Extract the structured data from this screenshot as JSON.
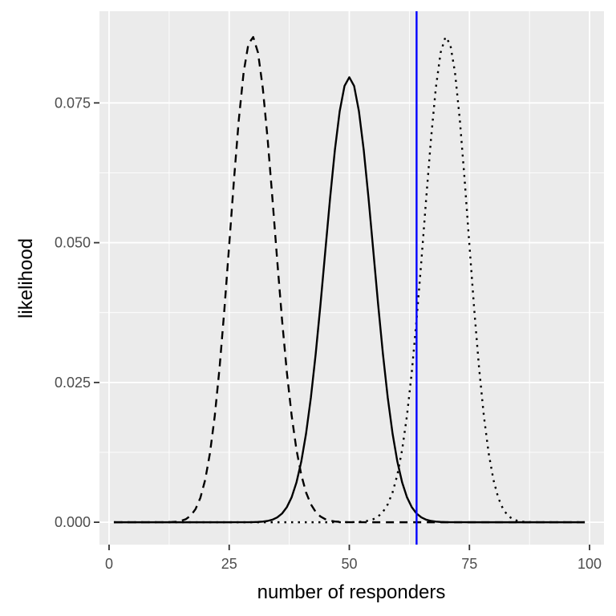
{
  "chart_data": {
    "type": "line",
    "title": "",
    "xlabel": "number of responders",
    "ylabel": "likelihood",
    "xlim": [
      -2,
      103
    ],
    "ylim": [
      -0.004,
      0.0914
    ],
    "x_ticks": [
      0,
      25,
      50,
      75,
      100
    ],
    "x_tick_labels": [
      "0",
      "25",
      "50",
      "75",
      "100"
    ],
    "y_ticks": [
      0.0,
      0.025,
      0.05,
      0.075
    ],
    "y_tick_labels": [
      "0.000",
      "0.025",
      "0.050",
      "0.075"
    ],
    "grid": true,
    "legend": "none",
    "x": [
      1,
      100
    ],
    "series": [
      {
        "distribution": "binomial",
        "n": 100,
        "p": 0.3,
        "linestyle": "dashed",
        "color": "#000000"
      },
      {
        "distribution": "binomial",
        "n": 100,
        "p": 0.5,
        "linestyle": "solid",
        "color": "#000000"
      },
      {
        "distribution": "binomial",
        "n": 100,
        "p": 0.7,
        "linestyle": "dotted",
        "color": "#000000"
      }
    ],
    "vertical_line": {
      "x": 64,
      "color": "#0000ff"
    },
    "panel_background": "#ebebeb",
    "grid_color": "#ffffff"
  }
}
